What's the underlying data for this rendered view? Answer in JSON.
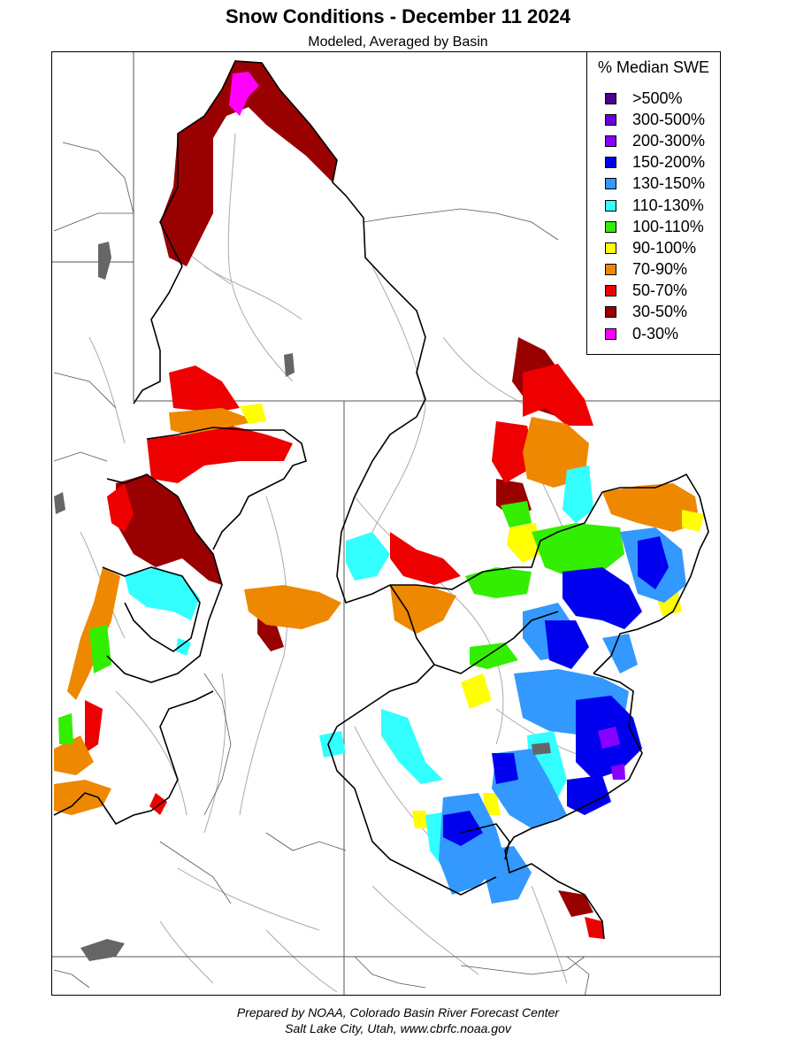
{
  "header": {
    "title": "Snow Conditions - December 11 2024",
    "subtitle": "Modeled, Averaged by Basin"
  },
  "legend": {
    "title": "% Median SWE",
    "items": [
      {
        "label": ">500%",
        "color": "#4b0090"
      },
      {
        "label": "300-500%",
        "color": "#6600dd"
      },
      {
        "label": "200-300%",
        "color": "#8800ff"
      },
      {
        "label": "150-200%",
        "color": "#0000ee"
      },
      {
        "label": "130-150%",
        "color": "#3399ff"
      },
      {
        "label": "110-130%",
        "color": "#33ffff"
      },
      {
        "label": "100-110%",
        "color": "#33ee00"
      },
      {
        "label": "90-100%",
        "color": "#ffff00"
      },
      {
        "label": "70-90%",
        "color": "#ee8800"
      },
      {
        "label": "50-70%",
        "color": "#ee0000"
      },
      {
        "label": "30-50%",
        "color": "#990000"
      },
      {
        "label": "0-30%",
        "color": "#ff00ff"
      }
    ]
  },
  "footer": {
    "line1": "Prepared by NOAA, Colorado Basin River Forecast Center",
    "line2": "Salt Lake City, Utah, www.cbrfc.noaa.gov"
  },
  "colors": {
    "basin_outline": "#000000",
    "state_line": "#555555",
    "river": "#aaaaaa",
    "lake": "#666666"
  }
}
